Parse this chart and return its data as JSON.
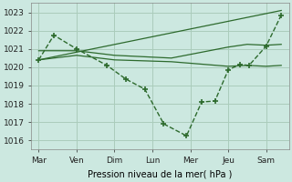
{
  "bg_color": "#cce8e0",
  "grid_color": "#aaccbb",
  "line_color": "#2d6a2d",
  "xlabel": "Pression niveau de la mer( hPa )",
  "ylim": [
    1015.5,
    1023.5
  ],
  "yticks": [
    1016,
    1017,
    1018,
    1019,
    1020,
    1021,
    1022,
    1023
  ],
  "xtick_labels": [
    "Mar",
    "Ven",
    "Dim",
    "Lun",
    "Mer",
    "Jeu",
    "Sam"
  ],
  "xtick_positions": [
    0,
    1,
    2,
    3,
    4,
    5,
    6
  ],
  "xlim": [
    -0.2,
    6.6
  ],
  "series1_x": [
    0,
    0.4,
    1.0,
    1.8,
    2.3,
    2.8,
    3.3,
    3.9,
    4.3,
    4.65,
    5.0,
    5.3,
    5.55,
    6.0,
    6.4
  ],
  "series1_y": [
    1020.4,
    1021.75,
    1021.0,
    1020.1,
    1019.35,
    1018.8,
    1016.9,
    1016.25,
    1018.1,
    1018.15,
    1019.85,
    1020.15,
    1020.1,
    1021.15,
    1022.85
  ],
  "series2_x": [
    0,
    1.0,
    2.0,
    3.5,
    5.0,
    5.5,
    6.0,
    6.4
  ],
  "series2_y": [
    1020.9,
    1020.9,
    1020.65,
    1020.5,
    1021.1,
    1021.25,
    1021.2,
    1021.25
  ],
  "series3_x": [
    0,
    1.0,
    2.0,
    3.5,
    5.0,
    5.5,
    6.0,
    6.4
  ],
  "series3_y": [
    1020.4,
    1020.65,
    1020.4,
    1020.3,
    1020.05,
    1020.1,
    1020.05,
    1020.1
  ],
  "series4_x": [
    0,
    6.4
  ],
  "series4_y": [
    1020.4,
    1023.1
  ]
}
